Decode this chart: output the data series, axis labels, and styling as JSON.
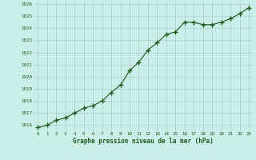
{
  "x": [
    0,
    1,
    2,
    3,
    4,
    5,
    6,
    7,
    8,
    9,
    10,
    11,
    12,
    13,
    14,
    15,
    16,
    17,
    18,
    19,
    20,
    21,
    22,
    23
  ],
  "y": [
    1015.8,
    1016.0,
    1016.4,
    1016.6,
    1017.0,
    1017.4,
    1017.6,
    1018.0,
    1018.7,
    1019.3,
    1020.5,
    1021.2,
    1022.2,
    1022.8,
    1023.5,
    1023.7,
    1024.5,
    1024.5,
    1024.3,
    1024.3,
    1024.5,
    1024.8,
    1025.2,
    1025.7
  ],
  "ylim": [
    1015.5,
    1026.2
  ],
  "yticks": [
    1016,
    1017,
    1018,
    1019,
    1020,
    1021,
    1022,
    1023,
    1024,
    1025,
    1026
  ],
  "xticks": [
    0,
    1,
    2,
    3,
    4,
    5,
    6,
    7,
    8,
    9,
    10,
    11,
    12,
    13,
    14,
    15,
    16,
    17,
    18,
    19,
    20,
    21,
    22,
    23
  ],
  "line_color": "#1a5c1a",
  "marker_color": "#1a5c1a",
  "bg_color": "#cceee8",
  "grid_color": "#aacccc",
  "xlabel": "Graphe pression niveau de la mer (hPa)",
  "xlabel_color": "#1a5c1a",
  "tick_color": "#1a5c1a",
  "fig_bg": "#cceee8"
}
